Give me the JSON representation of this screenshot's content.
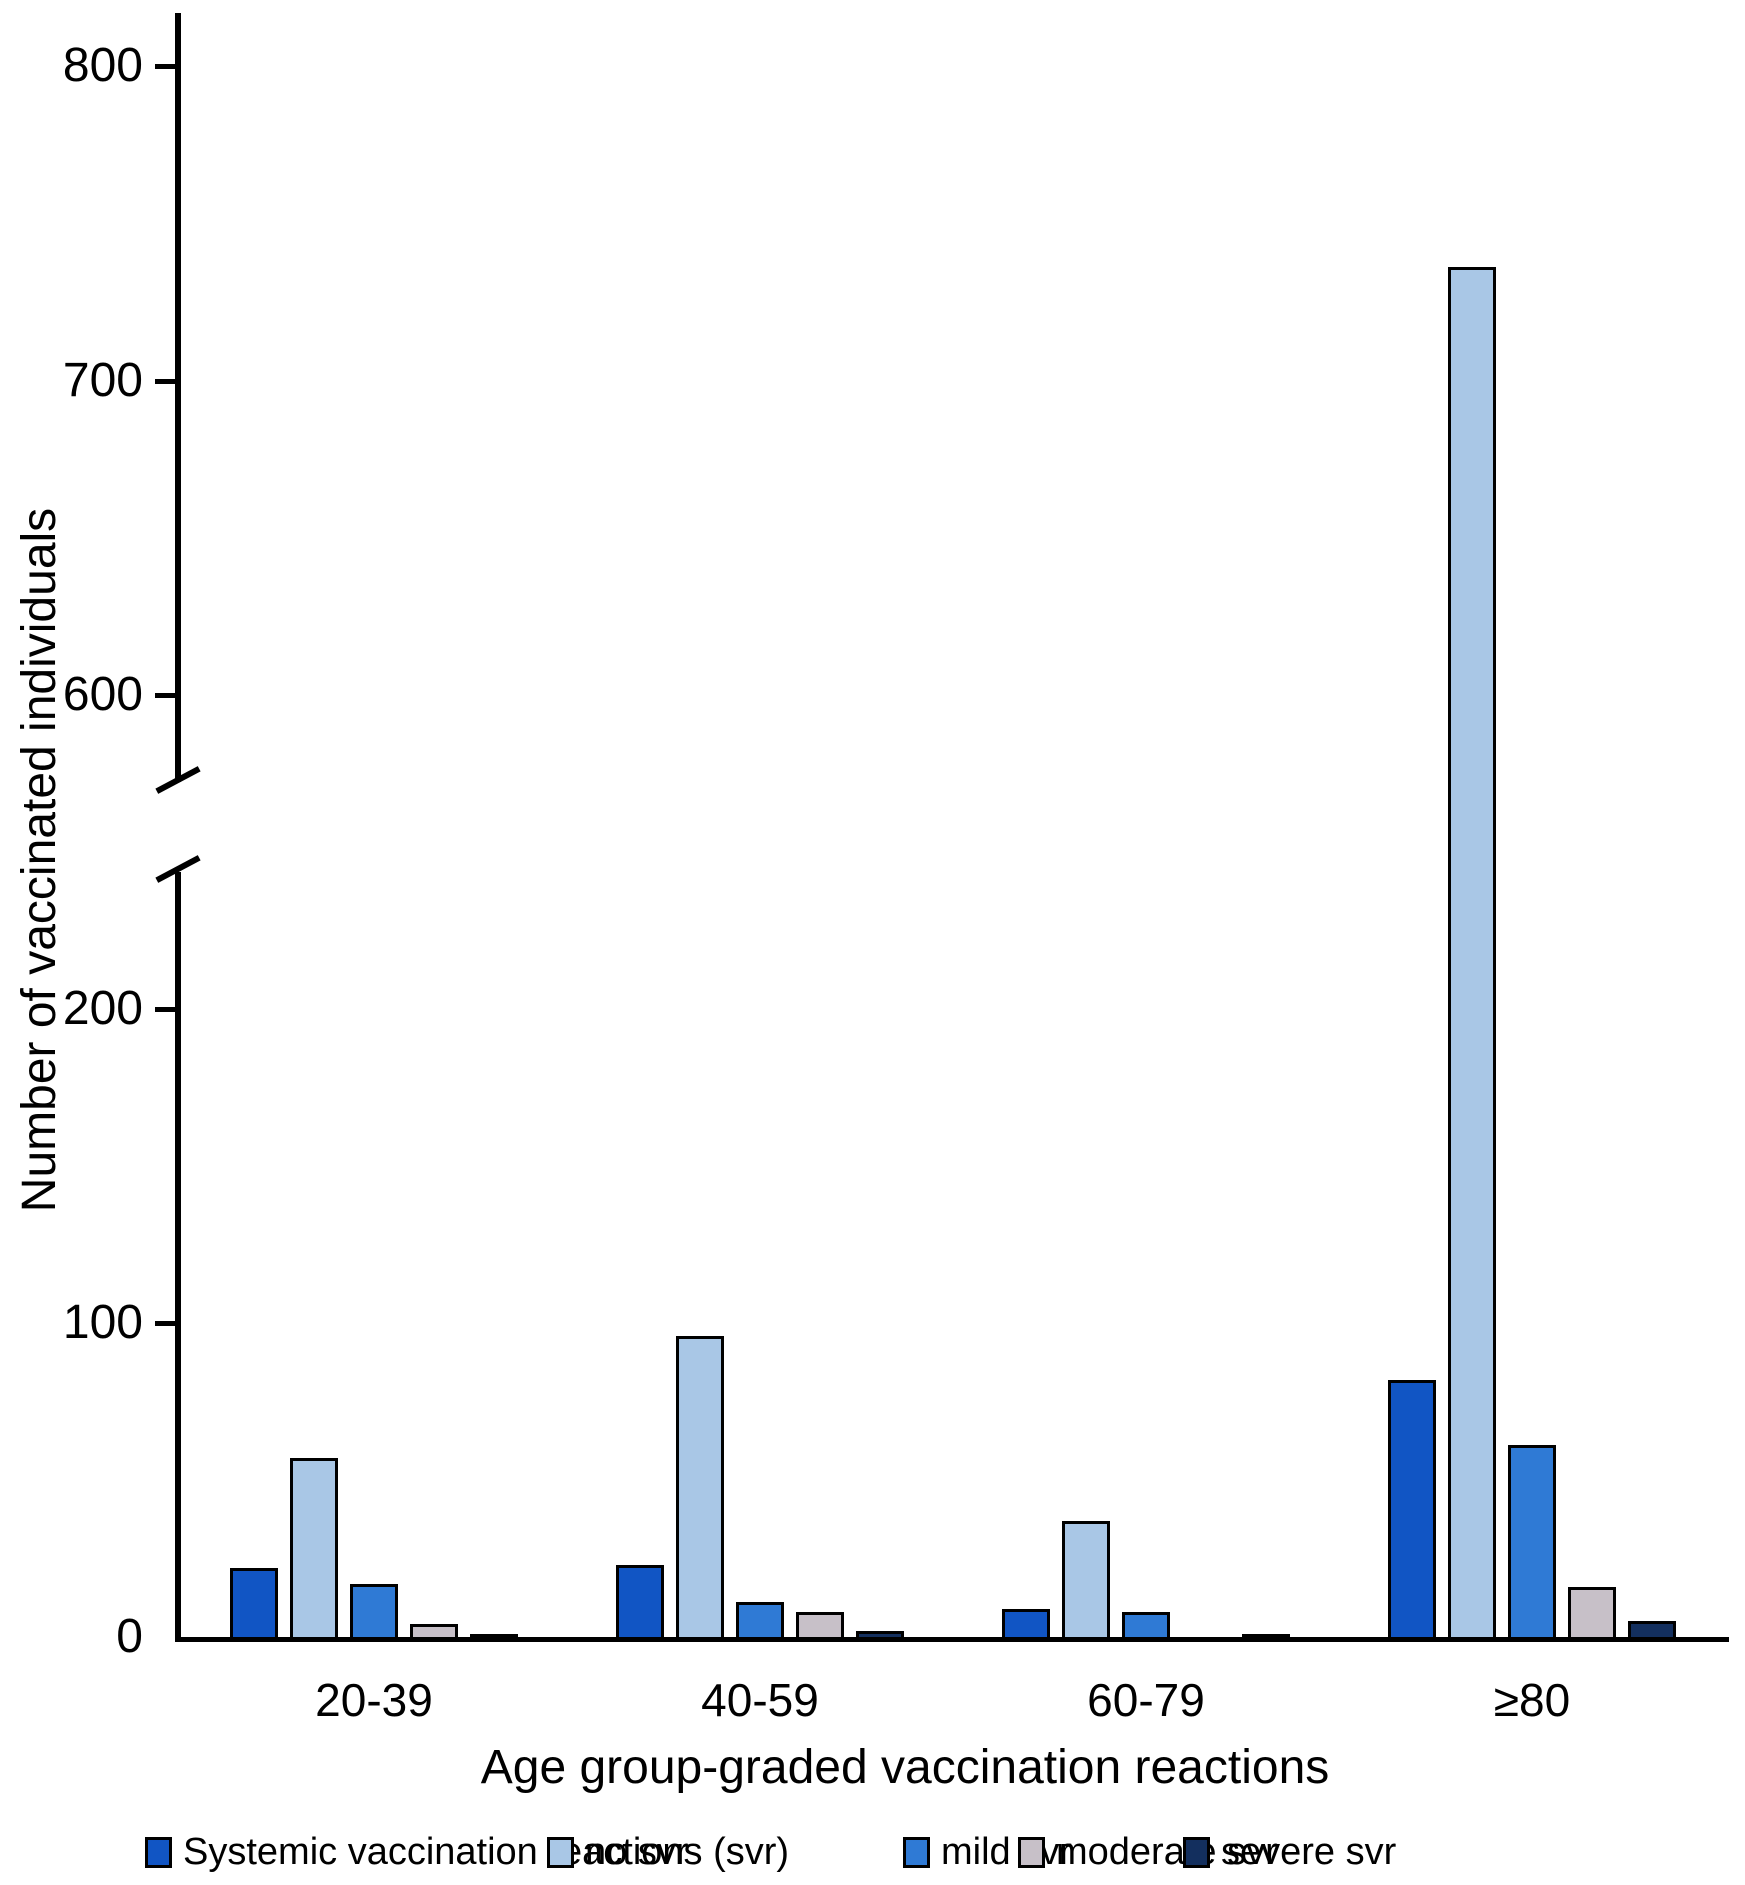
{
  "chart_data": {
    "type": "bar",
    "title": "",
    "categories": [
      "20-39",
      "40-59",
      "60-79",
      "≥80"
    ],
    "series": [
      {
        "name": "Systemic vaccination reactions (svr)",
        "color": "#1155C4",
        "values": [
          22,
          23,
          9,
          82
        ]
      },
      {
        "name": "no svr",
        "color": "#A9C7E6",
        "values": [
          57,
          96,
          37,
          736
        ]
      },
      {
        "name": "mild svr",
        "color": "#2F7AD5",
        "values": [
          17,
          11,
          8,
          61
        ]
      },
      {
        "name": "moderate svr",
        "color": "#C7C0C8",
        "values": [
          4,
          8,
          0,
          16
        ]
      },
      {
        "name": "severe svr",
        "color": "#132F5E",
        "values": [
          1,
          2,
          1,
          5
        ]
      }
    ],
    "xlabel": "Age group-graded vaccination reactions",
    "ylabel": "Number of vaccinated individuals",
    "y_axis": {
      "lower_ticks": [
        0,
        100,
        200
      ],
      "upper_ticks": [
        600,
        700,
        800
      ],
      "axis_break": true,
      "break_between": [
        250,
        570
      ]
    },
    "legend_position": "bottom",
    "grid": false,
    "bar_outline_color": "#000000",
    "axis_color": "#000000"
  }
}
